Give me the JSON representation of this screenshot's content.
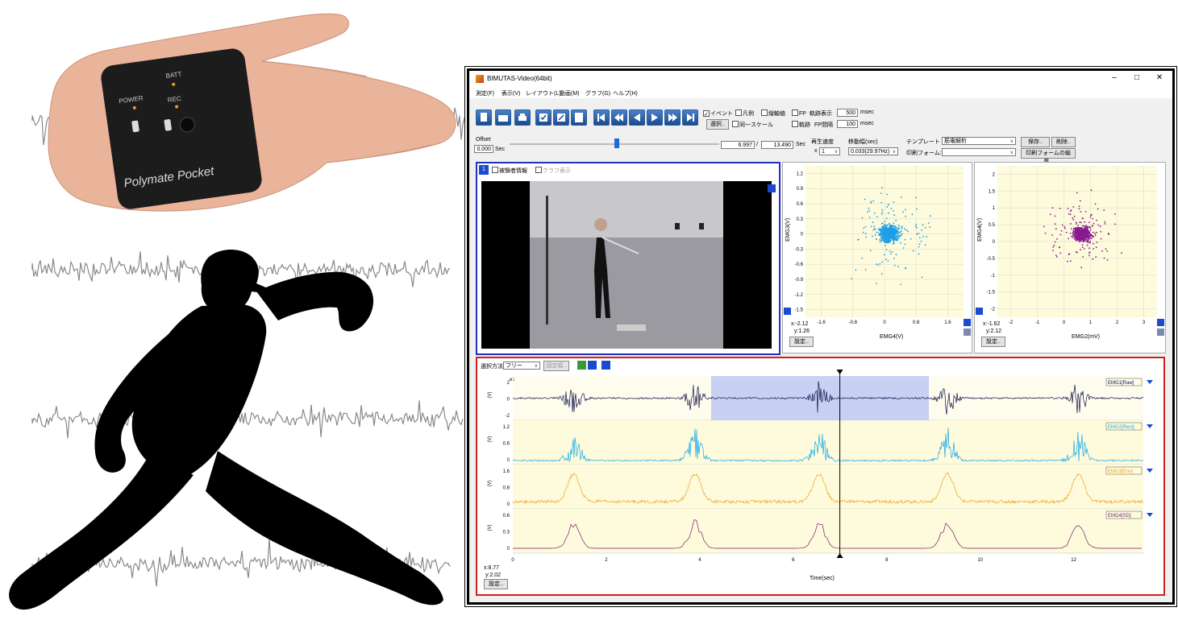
{
  "device": {
    "batt": "BATT",
    "power": "POWER",
    "rec": "REC",
    "brand": "Polymate Pocket"
  },
  "window": {
    "title": "BIMUTAS-Video(64bit)",
    "minimize": "–",
    "maximize": "□",
    "close": "✕"
  },
  "menu": [
    "測定(F)",
    "表示(V)",
    "レイアウト(L)",
    "動画(M)",
    "グラフ(G)",
    "ヘルプ(H)"
  ],
  "toolbar": {
    "event": "イベント",
    "legend": "凡例",
    "aux_axis": "縦軸値",
    "fp": "FP",
    "trace_display": "軌跡表示",
    "trace_ms": "500",
    "unit_msec": "msec",
    "select_btn": "選択..",
    "same_scale": "同一スケール",
    "trace": "軌跡",
    "fp_interval": "FP間隔",
    "fp_ms": "100"
  },
  "playback": {
    "offset_label": "Offset",
    "offset_value": "0.000",
    "sec": "Sec",
    "current": "6.997",
    "slash": "/",
    "total": "13.490",
    "speed_label": "再生速度",
    "speed_x": "x",
    "speed_value": "1",
    "step_label": "移動幅(sec)",
    "step_value": "0.033(29.97Hz)",
    "template_label": "テンプレート",
    "template_value": "筋電解析",
    "print_label": "印刷フォーム:",
    "save_btn": "保存..",
    "delete_btn": "削除..",
    "edit_print_btn": "印刷フォームの編集.."
  },
  "video_panel": {
    "number": "1",
    "subject_info": "被験者情報",
    "graph_display": "グラフ表示"
  },
  "scatter1": {
    "ylabel": "EMG3(V)",
    "xlabel": "EMG4(V)",
    "yticks": [
      "1.2",
      "0.9",
      "0.6",
      "0.3",
      "0",
      "-0.3",
      "-0.6",
      "-0.9",
      "-1.2",
      "-1.5"
    ],
    "xticks": [
      "-1.6",
      "-0.8",
      "0",
      "0.8",
      "1.6"
    ],
    "readout_x": "x:-2.12",
    "readout_y": "y:1.26",
    "settings_btn": "設定..",
    "color": "#1e9fe6"
  },
  "scatter2": {
    "ylabel": "EMG4(V)",
    "xlabel": "EMG2(mV)",
    "yticks": [
      "2",
      "1.5",
      "1",
      "0.5",
      "0",
      "-0.5",
      "-1",
      "-1.5",
      "-2"
    ],
    "xticks": [
      "-2",
      "-1",
      "0",
      "1",
      "2",
      "3"
    ],
    "readout_x": "x:-1.62",
    "readout_y": "y:2.12",
    "settings_btn": "設定..",
    "color": "#8a1a90"
  },
  "emg_panel": {
    "select_label": "選択方法",
    "select_value": "フリー",
    "fixed_btn": "固定幅..",
    "exp": "e1",
    "xlabel": "Time(sec)",
    "xticks": [
      "0",
      "2",
      "4",
      "6",
      "8",
      "10",
      "12"
    ],
    "readout_x": "x:8.77",
    "readout_y": "y:2.02",
    "settings_btn": "設定..",
    "tracks": [
      {
        "name": "EMG1[Raw]",
        "unit": "(V)",
        "yticks": [
          "2",
          "0",
          "-2"
        ],
        "color": "#10104a"
      },
      {
        "name": "EMG2[Rect]",
        "unit": "(V)",
        "yticks": [
          "1.2",
          "0.6",
          "0"
        ],
        "color": "#1aa8e8"
      },
      {
        "name": "EMG3[Env]",
        "unit": "(V)",
        "yticks": [
          "1.6",
          "0.8",
          "0"
        ],
        "color": "#f0a020"
      },
      {
        "name": "EMG4[SD]",
        "unit": "(V)",
        "yticks": [
          "0.6",
          "0.3",
          "0"
        ],
        "color": "#7a1a6a"
      }
    ]
  }
}
